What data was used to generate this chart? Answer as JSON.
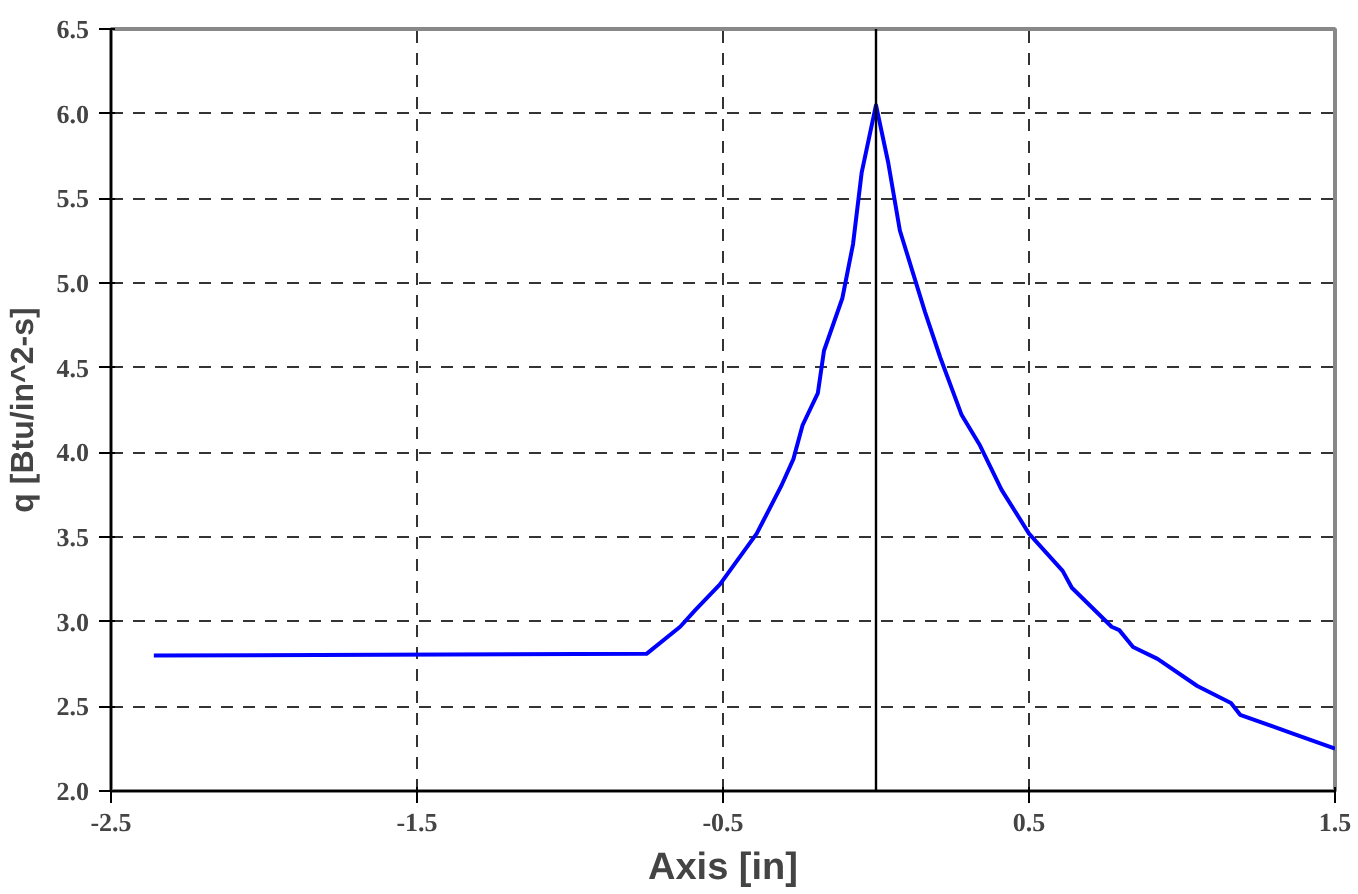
{
  "chart_data": {
    "type": "line",
    "xlabel": "Axis [in]",
    "ylabel": "q [Btu/in^2-s]",
    "series": [
      {
        "color": "#0000ff",
        "x": [
          -2.36,
          -0.75,
          -0.64,
          -0.59,
          -0.51,
          -0.39,
          -0.31,
          -0.27,
          -0.24,
          -0.19,
          -0.17,
          -0.11,
          -0.075,
          -0.047,
          0.0,
          0.04,
          0.078,
          0.16,
          0.21,
          0.28,
          0.34,
          0.41,
          0.5,
          0.61,
          0.64,
          0.77,
          0.795,
          0.84,
          0.92,
          1.05,
          1.16,
          1.19,
          1.36,
          1.5
        ],
        "values": [
          2.8,
          2.81,
          2.97,
          3.07,
          3.22,
          3.52,
          3.8,
          3.96,
          4.16,
          4.35,
          4.6,
          4.91,
          5.23,
          5.65,
          6.05,
          5.71,
          5.31,
          4.83,
          4.56,
          4.22,
          4.04,
          3.78,
          3.52,
          3.3,
          3.2,
          2.97,
          2.95,
          2.85,
          2.78,
          2.62,
          2.52,
          2.45,
          2.34,
          2.25
        ]
      }
    ],
    "xlim": [
      -2.5,
      1.5
    ],
    "xticks": [
      -2.5,
      -1.5,
      -0.5,
      0.5,
      1.5
    ],
    "ylim": [
      2.0,
      6.5
    ],
    "yticks": [
      {
        "value": 2.0,
        "label": "2.0"
      },
      {
        "value": 2.5,
        "label": "2.5"
      },
      {
        "value": 3.0,
        "label": "3.0"
      },
      {
        "value": 3.5,
        "label": "3.5"
      },
      {
        "value": 4.0,
        "label": "4.0"
      },
      {
        "value": 4.5,
        "label": "4.5"
      },
      {
        "value": 5.0,
        "label": "5.0"
      },
      {
        "value": 5.5,
        "label": "5.5"
      },
      {
        "value": 6.0,
        "label": "6.0"
      },
      {
        "value": 6.5,
        "label": "6.5"
      }
    ],
    "ref_lines": [
      {
        "axis": "x",
        "value": 0,
        "color": "#000000",
        "line_style": "solid"
      }
    ],
    "grid": true,
    "marker": "none",
    "line_style": "solid"
  }
}
